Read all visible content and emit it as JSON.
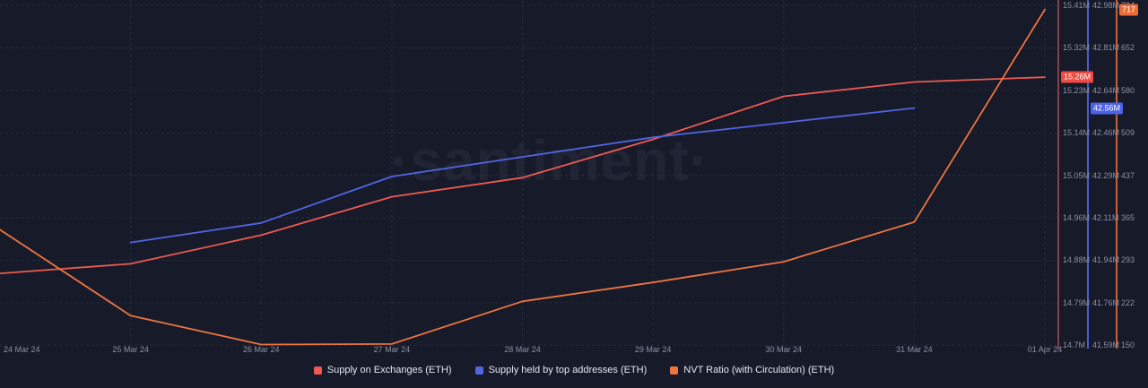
{
  "watermark": "·santiment·",
  "chart_data": {
    "type": "line",
    "categories": [
      "24 Mar 24",
      "25 Mar 24",
      "26 Mar 24",
      "27 Mar 24",
      "28 Mar 24",
      "29 Mar 24",
      "30 Mar 24",
      "31 Mar 24",
      "01 Apr 24"
    ],
    "series": [
      {
        "name": "Supply on Exchanges (ETH)",
        "color": "#ec5a51",
        "axis": 0,
        "unit": "M",
        "values": [
          14.85,
          14.87,
          14.93,
          15.01,
          15.05,
          15.13,
          15.22,
          15.25,
          15.26
        ]
      },
      {
        "name": "Supply held by top addresses (ETH)",
        "color": "#5065e2",
        "axis": 1,
        "unit": "M",
        "values": [
          null,
          42.01,
          42.09,
          42.28,
          42.36,
          42.44,
          42.5,
          42.56,
          null
        ]
      },
      {
        "name": "NVT Ratio (with Circulation) (ETH)",
        "color": "#ec7440",
        "axis": 2,
        "unit": "",
        "values": [
          345,
          200,
          151,
          152,
          224,
          256,
          291,
          358,
          717
        ]
      }
    ],
    "y_axes": [
      {
        "min": 14.7,
        "max": 15.41,
        "ticks": [
          "15.41M",
          "15.32M",
          "15.23M",
          "15.14M",
          "15.05M",
          "14.96M",
          "14.88M",
          "14.79M",
          "14.7M"
        ],
        "line_color": "#84414a",
        "badge": {
          "label": "15.26M",
          "value": 15.26,
          "bg": "#ef4b42"
        }
      },
      {
        "min": 41.59,
        "max": 42.98,
        "ticks": [
          "42.98M",
          "42.81M",
          "42.64M",
          "42.46M",
          "42.29M",
          "42.11M",
          "41.94M",
          "41.76M",
          "41.59M"
        ],
        "line_color": "#4a5ed2",
        "badge": {
          "label": "42.56M",
          "value": 42.56,
          "bg": "#4c63e8"
        }
      },
      {
        "min": 150,
        "max": 724,
        "ticks": [
          "724",
          "652",
          "580",
          "509",
          "437",
          "365",
          "293",
          "222",
          "150"
        ],
        "line_color": "#c2633c",
        "badge": {
          "label": "717",
          "value": 717,
          "bg": "#ed6b35"
        }
      }
    ],
    "grid": true,
    "legend_position": "bottom"
  }
}
